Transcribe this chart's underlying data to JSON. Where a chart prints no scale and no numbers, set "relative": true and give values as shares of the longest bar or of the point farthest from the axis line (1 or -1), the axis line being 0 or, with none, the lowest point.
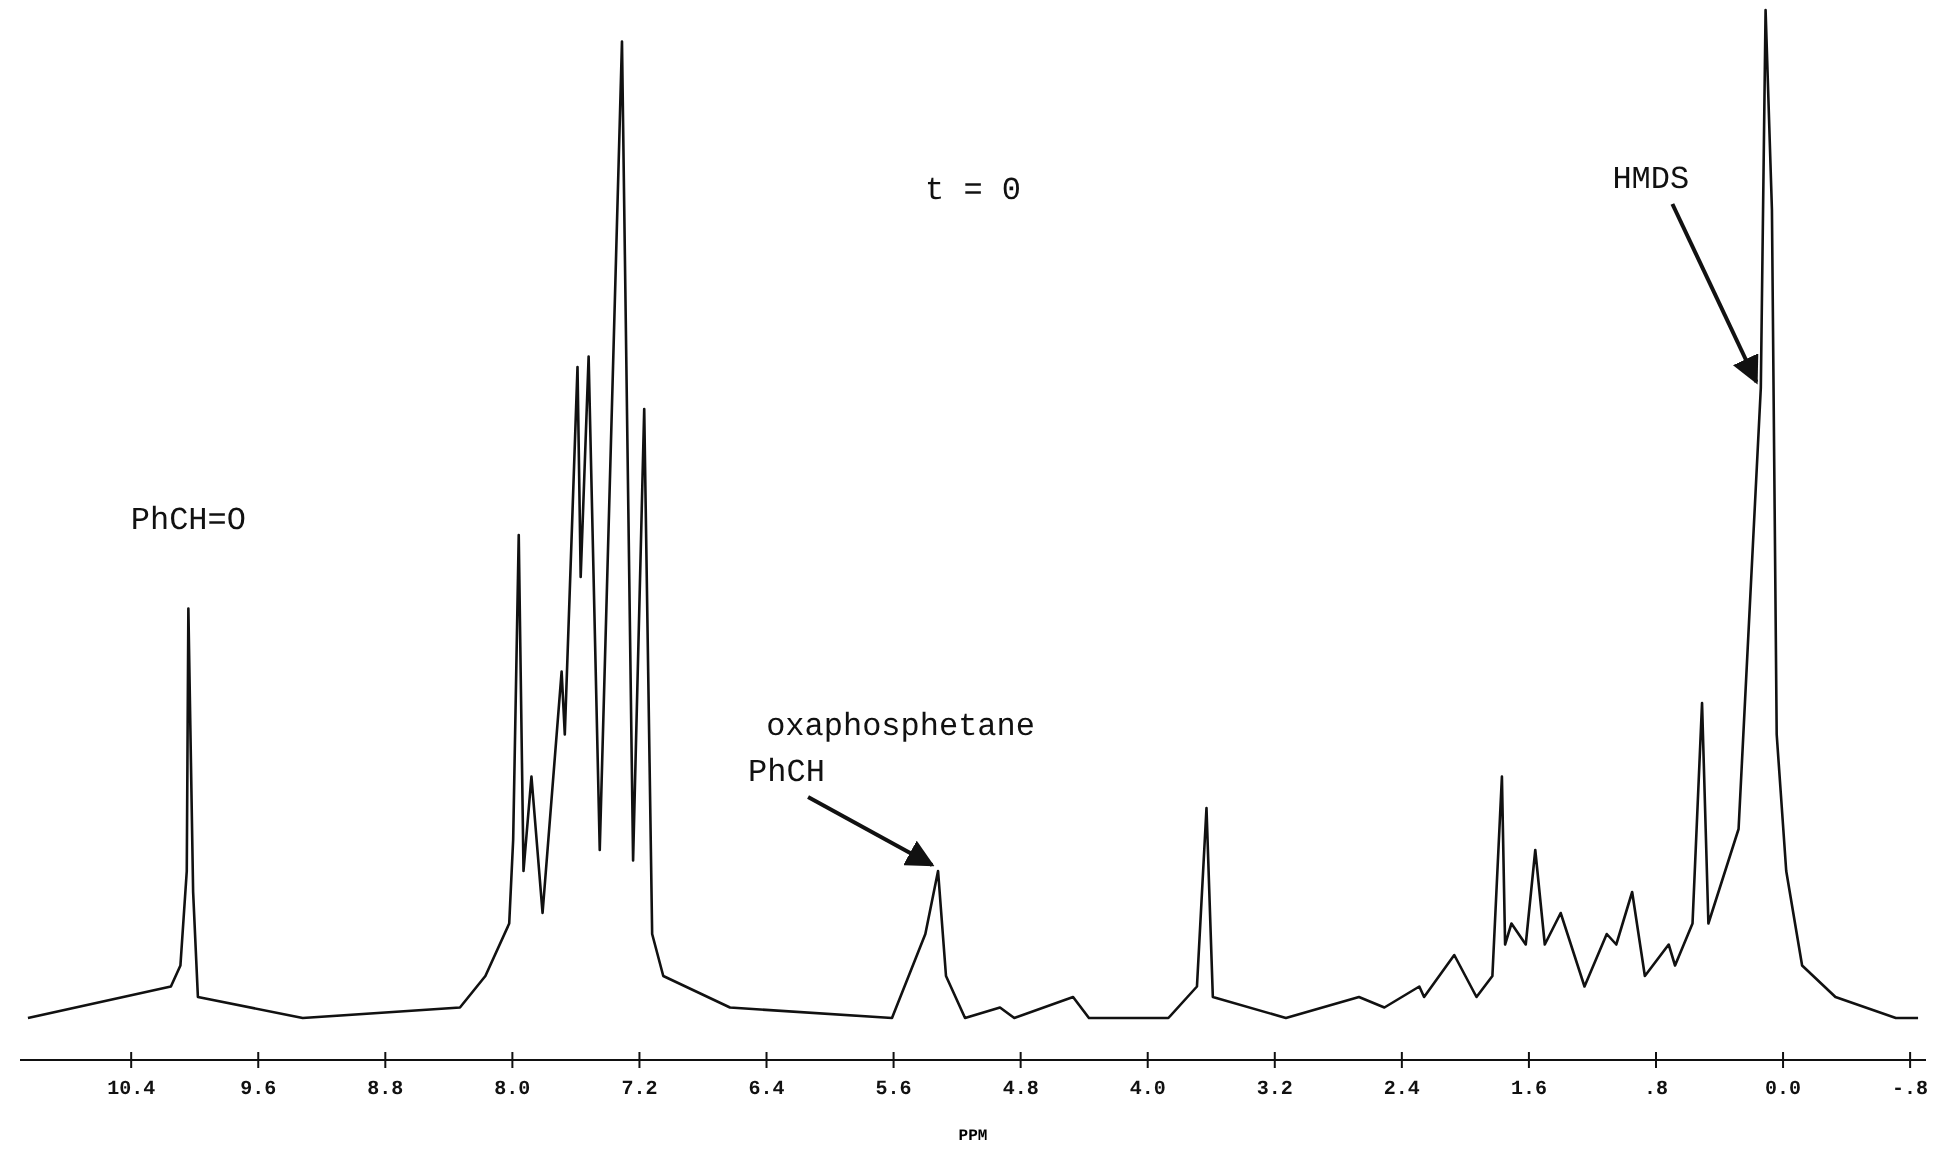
{
  "chart_data": {
    "type": "line",
    "relative": true,
    "xlabel": "PPM",
    "xlim": [
      11.1,
      -0.9
    ],
    "xticks": [
      10.4,
      9.6,
      8.8,
      {
        "value": 8.0,
        "label": "8.0"
      },
      7.2,
      6.4,
      5.6,
      4.8,
      {
        "value": 4.0,
        "label": "4.0"
      },
      3.2,
      2.4,
      1.6,
      {
        "value": 0.8,
        "label": ".8"
      },
      {
        "value": 0,
        "label": "0.0"
      },
      {
        "value": -0.8,
        "label": "-.8"
      }
    ],
    "x": [
      11.05,
      10.15,
      10.09,
      10.05,
      10.04,
      10.01,
      9.98,
      9.32,
      8.33,
      8.17,
      8.02,
      7.995,
      7.96,
      7.93,
      7.88,
      7.81,
      7.69,
      7.67,
      7.59,
      7.57,
      7.52,
      7.45,
      7.31,
      7.24,
      7.17,
      7.12,
      7.05,
      6.63,
      5.61,
      5.4,
      5.32,
      5.27,
      5.15,
      4.93,
      4.84,
      4.47,
      4.37,
      3.87,
      3.69,
      3.63,
      3.59,
      3.13,
      2.67,
      2.51,
      2.29,
      2.26,
      2.07,
      1.93,
      1.83,
      1.77,
      1.75,
      1.71,
      1.62,
      1.56,
      1.5,
      1.4,
      1.25,
      1.11,
      1.05,
      0.95,
      0.87,
      0.72,
      0.68,
      0.57,
      0.51,
      0.47,
      0.28,
      0.19,
      0.14,
      0.11,
      0.07,
      0.04,
      -0.02,
      -0.12,
      -0.33,
      -0.71,
      -0.85
    ],
    "series": [
      {
        "color": "#111111",
        "values": [
          0.04,
          0.07,
          0.09,
          0.18,
          0.43,
          0.16,
          0.06,
          0.04,
          0.05,
          0.08,
          0.13,
          0.21,
          0.5,
          0.18,
          0.27,
          0.14,
          0.37,
          0.31,
          0.66,
          0.46,
          0.67,
          0.2,
          0.97,
          0.19,
          0.62,
          0.12,
          0.08,
          0.05,
          0.04,
          0.12,
          0.18,
          0.08,
          0.04,
          0.05,
          0.04,
          0.06,
          0.04,
          0.04,
          0.07,
          0.24,
          0.06,
          0.04,
          0.06,
          0.05,
          0.07,
          0.06,
          0.1,
          0.06,
          0.08,
          0.27,
          0.11,
          0.13,
          0.11,
          0.2,
          0.11,
          0.14,
          0.07,
          0.12,
          0.11,
          0.16,
          0.08,
          0.11,
          0.09,
          0.13,
          0.34,
          0.13,
          0.22,
          0.49,
          0.64,
          1,
          0.81,
          0.31,
          0.18,
          0.09,
          0.06,
          0.04,
          0.04
        ]
      }
    ],
    "annotations": [
      "t = 0",
      {
        "text": "PhCH=O",
        "x": 10.04,
        "y": 0.43
      },
      "oxaphosphetane",
      {
        "text": "PhCH",
        "x": 5.32,
        "y": 0.18
      },
      {
        "text": "HMDS",
        "x": 0.13,
        "y": 0.64
      }
    ],
    "grid": false,
    "marker": "none",
    "line_style": "solid"
  }
}
